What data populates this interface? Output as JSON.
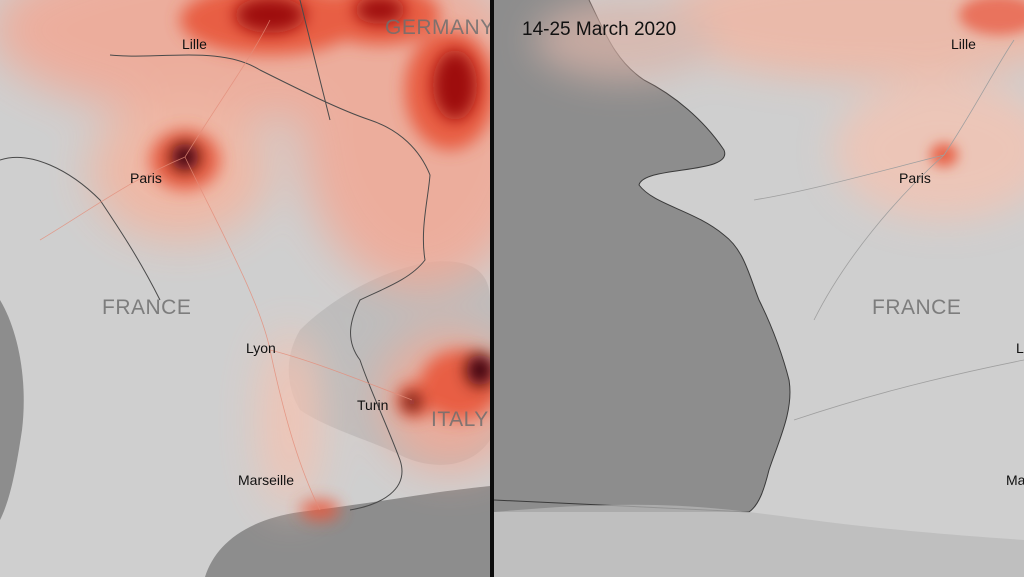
{
  "colors": {
    "land": "#cfcfcf",
    "sea": "#8d8d8d",
    "no2_low": "#f4b49e",
    "no2_mid": "#e8563a",
    "no2_high": "#9e1010",
    "no2_peak": "#3a0407",
    "divider": "#0d0d0d"
  },
  "left_panel": {
    "cities": {
      "lille": "Lille",
      "paris": "Paris",
      "lyon": "Lyon",
      "turin": "Turin",
      "marseille": "Marseille"
    },
    "countries": {
      "germany": "GERMANY",
      "france": "FRANCE",
      "italy": "ITALY"
    }
  },
  "right_panel": {
    "date_range": "14-25 March 2020",
    "cities": {
      "lille": "Lille",
      "paris": "Paris",
      "lyon_partial": "L",
      "marseille_partial": "Ma"
    },
    "countries": {
      "france": "FRANCE"
    }
  }
}
